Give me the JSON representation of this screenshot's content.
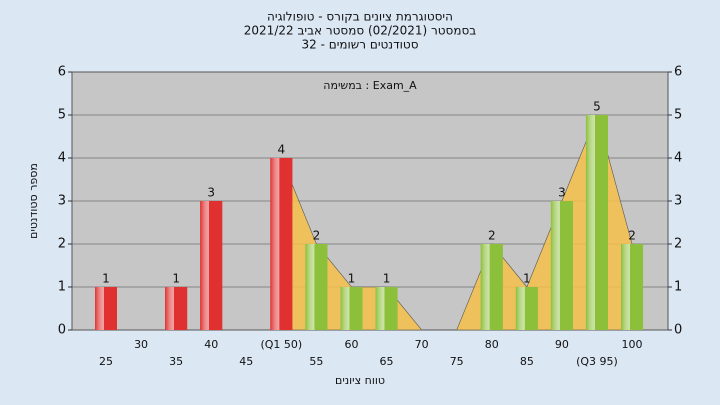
{
  "chart_data": {
    "type": "bar",
    "title": "היסטוגרמת ציונים בקורס - טופולוגיה",
    "subtitle": "בסמסטר  (02/2021)  סמסטר אביב 2021/22",
    "subtitle2": "סטודנטים רשומים - 32",
    "annotation": "במשימה : Exam_A",
    "x_label": "טווח ציונים",
    "y_label": "מספר סטודנטים",
    "categories": [
      "25",
      "30",
      "35",
      "40",
      "45",
      "(Q1 50)",
      "55",
      "60",
      "65",
      "70",
      "75",
      "80",
      "85",
      "90",
      "(Q3 95)",
      "100"
    ],
    "values": [
      1,
      0,
      1,
      3,
      0,
      4,
      2,
      1,
      1,
      0,
      0,
      2,
      1,
      3,
      5,
      2
    ],
    "colors": [
      "#e03030",
      "#e03030",
      "#e03030",
      "#e03030",
      "#e03030",
      "#e03030",
      "#8cbf3a",
      "#8cbf3a",
      "#8cbf3a",
      "#8cbf3a",
      "#8cbf3a",
      "#8cbf3a",
      "#8cbf3a",
      "#8cbf3a",
      "#8cbf3a",
      "#8cbf3a"
    ],
    "area_color": "#f5c04a",
    "ylim": [
      0,
      6
    ],
    "yticks": [
      0,
      1,
      2,
      3,
      4,
      5,
      6
    ],
    "y2lim": [
      0,
      6
    ],
    "y2ticks": [
      0,
      1,
      2,
      3,
      4,
      5,
      6
    ],
    "grid": true
  }
}
